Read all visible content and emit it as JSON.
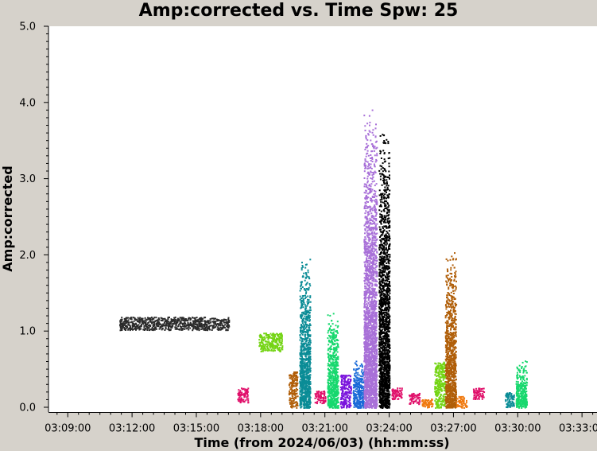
{
  "chart_data": {
    "type": "scatter",
    "title": "Amp:corrected vs. Time Spw: 25",
    "xlabel": "Time (from 2024/06/03) (hh:mm:ss)",
    "ylabel": "Amp:corrected",
    "x_unit": "minutes after 03:00:00 on 2024/06/03",
    "xlim": [
      8.1,
      33.7
    ],
    "ylim": [
      0.0,
      5.0
    ],
    "x_ticks": [
      {
        "value": 9,
        "label": "03:09:00"
      },
      {
        "value": 12,
        "label": "03:12:00"
      },
      {
        "value": 15,
        "label": "03:15:00"
      },
      {
        "value": 18,
        "label": "03:18:00"
      },
      {
        "value": 21,
        "label": "03:21:00"
      },
      {
        "value": 24,
        "label": "03:24:00"
      },
      {
        "value": 27,
        "label": "03:27:00"
      },
      {
        "value": 30,
        "label": "03:30:00"
      },
      {
        "value": 33,
        "label": "03:33:00"
      }
    ],
    "y_ticks": [
      {
        "value": 0.0,
        "label": "0.0"
      },
      {
        "value": 1.0,
        "label": "1.0"
      },
      {
        "value": 2.0,
        "label": "2.0"
      },
      {
        "value": 3.0,
        "label": "3.0"
      },
      {
        "value": 4.0,
        "label": "4.0"
      },
      {
        "value": 5.0,
        "label": "5.0"
      }
    ],
    "grid": false,
    "legend": "none",
    "series": [
      {
        "x_start": 11.4,
        "x_end": 16.5,
        "y_min": 1.02,
        "y_max": 1.19,
        "color": "#2b2b2b"
      },
      {
        "x_start": 16.9,
        "x_end": 17.4,
        "y_min": 0.07,
        "y_max": 0.26,
        "color": "#e0106a"
      },
      {
        "x_start": 17.9,
        "x_end": 19.0,
        "y_min": 0.74,
        "y_max": 0.98,
        "color": "#74d414"
      },
      {
        "x_start": 19.3,
        "x_end": 19.7,
        "y_min": 0.0,
        "y_max": 0.47,
        "color": "#b05e08"
      },
      {
        "x_start": 19.8,
        "x_end": 20.3,
        "y_min": 0.0,
        "y_max": 2.07,
        "color": "#0a8c96"
      },
      {
        "x_start": 20.5,
        "x_end": 21.0,
        "y_min": 0.06,
        "y_max": 0.23,
        "color": "#e0106a"
      },
      {
        "x_start": 21.1,
        "x_end": 21.6,
        "y_min": 0.0,
        "y_max": 1.35,
        "color": "#18d86e"
      },
      {
        "x_start": 21.7,
        "x_end": 22.2,
        "y_min": 0.0,
        "y_max": 0.43,
        "color": "#7a14dc"
      },
      {
        "x_start": 22.3,
        "x_end": 22.8,
        "y_min": 0.0,
        "y_max": 0.65,
        "color": "#1a6ad8"
      },
      {
        "x_start": 22.8,
        "x_end": 23.4,
        "y_min": 0.0,
        "y_max": 4.05,
        "color": "#a870d8"
      },
      {
        "x_start": 23.5,
        "x_end": 24.0,
        "y_min": 0.0,
        "y_max": 3.75,
        "color": "#000000"
      },
      {
        "x_start": 24.1,
        "x_end": 24.6,
        "y_min": 0.11,
        "y_max": 0.26,
        "color": "#e0106a"
      },
      {
        "x_start": 24.9,
        "x_end": 25.4,
        "y_min": 0.05,
        "y_max": 0.19,
        "color": "#e0106a"
      },
      {
        "x_start": 25.5,
        "x_end": 26.0,
        "y_min": 0.0,
        "y_max": 0.12,
        "color": "#f07a10"
      },
      {
        "x_start": 26.1,
        "x_end": 26.6,
        "y_min": 0.0,
        "y_max": 0.6,
        "color": "#74d414"
      },
      {
        "x_start": 26.6,
        "x_end": 27.1,
        "y_min": 0.0,
        "y_max": 2.15,
        "color": "#b05e08"
      },
      {
        "x_start": 27.1,
        "x_end": 27.6,
        "y_min": 0.0,
        "y_max": 0.15,
        "color": "#f07a10"
      },
      {
        "x_start": 27.9,
        "x_end": 28.4,
        "y_min": 0.11,
        "y_max": 0.26,
        "color": "#e0106a"
      },
      {
        "x_start": 29.4,
        "x_end": 29.8,
        "y_min": 0.0,
        "y_max": 0.2,
        "color": "#0a8c96"
      },
      {
        "x_start": 29.9,
        "x_end": 30.4,
        "y_min": 0.0,
        "y_max": 0.66,
        "color": "#18d86e"
      }
    ]
  }
}
